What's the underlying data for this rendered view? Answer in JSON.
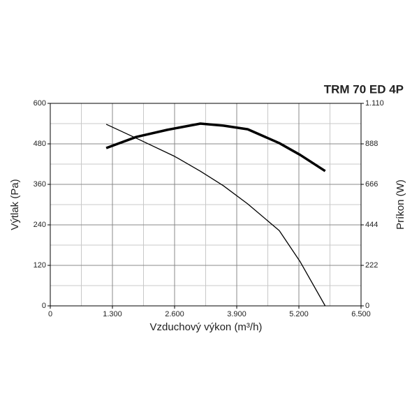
{
  "chart_data": {
    "type": "line",
    "title": "TRM 70 ED 4P",
    "xlabel": "Vzduchový výkon (m³/h)",
    "ylabel": "Výtlak (Pa)",
    "y2label": "Príkon (W)",
    "xlim": [
      0,
      6500
    ],
    "xticks": [
      0,
      {
        "value": 1300,
        "label": "1.300"
      },
      {
        "value": 2600,
        "label": "2.600"
      },
      {
        "value": 3900,
        "label": "3.900"
      },
      {
        "value": 5200,
        "label": "5.200"
      },
      {
        "value": 6500,
        "label": "6.500"
      }
    ],
    "ylim": [
      0,
      600
    ],
    "yticks": [
      0,
      120,
      240,
      360,
      480,
      600
    ],
    "y2lim": [
      0,
      1110
    ],
    "y2ticks": [
      0,
      222,
      444,
      666,
      888,
      {
        "value": 1110,
        "label": "1.110"
      }
    ],
    "grid": true,
    "minor_grid": true,
    "series": [
      {
        "axis": "y",
        "color": "#000000",
        "width": 1.3,
        "x": [
          1170,
          1870,
          2600,
          3140,
          3620,
          4130,
          4790,
          5230,
          5750
        ],
        "values": [
          538,
          492,
          443,
          399,
          356,
          302,
          223,
          130,
          0
        ]
      },
      {
        "axis": "y2",
        "color": "#000000",
        "width": 3.5,
        "x": [
          1170,
          1800,
          2450,
          3140,
          3620,
          4130,
          4790,
          5230,
          5750
        ],
        "values": [
          865,
          926,
          965,
          999,
          988,
          968,
          892,
          827,
          739
        ]
      }
    ]
  }
}
